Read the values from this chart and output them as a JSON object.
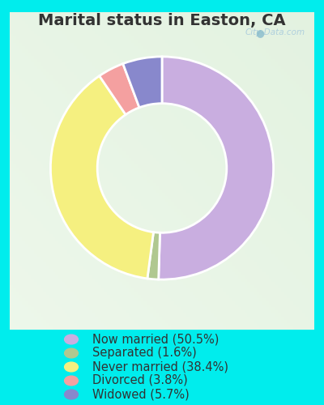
{
  "title": "Marital status in Easton, CA",
  "slices": [
    50.5,
    1.6,
    38.4,
    3.8,
    5.7
  ],
  "labels": [
    "Now married (50.5%)",
    "Separated (1.6%)",
    "Never married (38.4%)",
    "Divorced (3.8%)",
    "Widowed (5.7%)"
  ],
  "colors": [
    "#c9aee0",
    "#b0c890",
    "#f5f080",
    "#f4a0a0",
    "#8888cc"
  ],
  "bg_outer": "#00eded",
  "bg_chart_top_left": "#e8f5ee",
  "bg_chart_bottom_right": "#d0eedd",
  "title_color": "#333333",
  "title_fontsize": 14,
  "watermark": "City-Data.com",
  "legend_fontsize": 10.5,
  "donut_width": 0.42
}
